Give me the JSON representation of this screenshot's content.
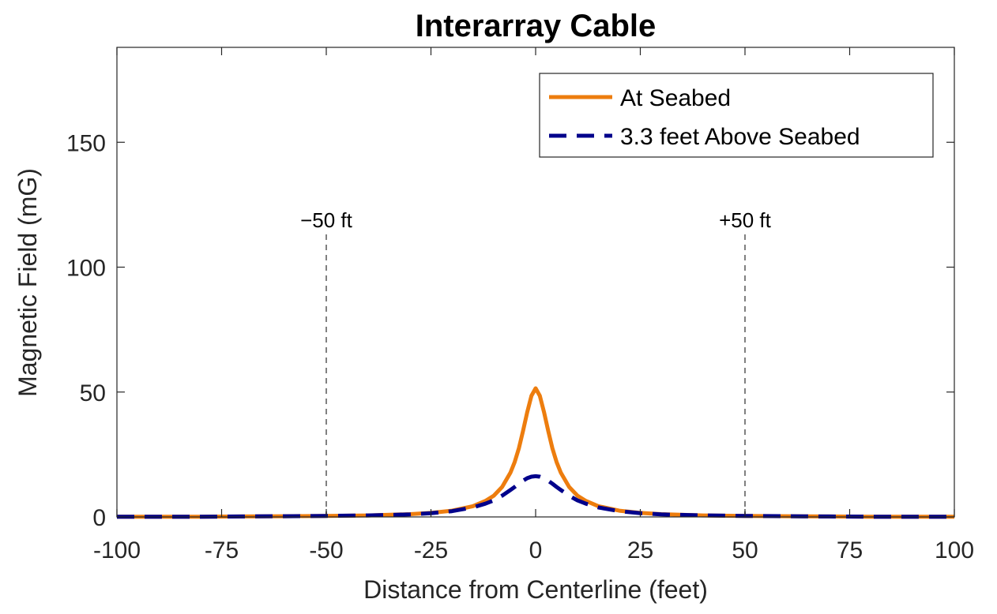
{
  "chart_data": {
    "type": "line",
    "title": "Interarray Cable",
    "xlabel": "Distance from Centerline (feet)",
    "ylabel": "Magnetic Field (mG)",
    "xlim": [
      -100,
      100
    ],
    "ylim": [
      0,
      188
    ],
    "xticks": [
      -100,
      -75,
      -50,
      -25,
      0,
      25,
      50,
      75,
      100
    ],
    "yticks": [
      0,
      50,
      100,
      150
    ],
    "grid": false,
    "legend_position": "top-right",
    "x": [
      -100,
      -90,
      -80,
      -70,
      -60,
      -50,
      -40,
      -30,
      -25,
      -20,
      -15,
      -12,
      -10,
      -8,
      -6,
      -5,
      -4,
      -3,
      -2,
      -1,
      0,
      1,
      2,
      3,
      4,
      5,
      6,
      8,
      10,
      12,
      15,
      20,
      25,
      30,
      40,
      50,
      60,
      70,
      80,
      90,
      100
    ],
    "series": [
      {
        "name": "At Seabed",
        "color": "#ED7D0E",
        "style": "solid",
        "values": [
          0.1,
          0.1,
          0.1,
          0.2,
          0.3,
          0.4,
          0.6,
          1.1,
          1.6,
          2.5,
          4.3,
          6.4,
          8.5,
          12.0,
          17.8,
          22.0,
          27.5,
          34.5,
          42.0,
          48.5,
          51.5,
          48.5,
          42.0,
          34.5,
          27.5,
          22.0,
          17.8,
          12.0,
          8.5,
          6.4,
          4.3,
          2.5,
          1.6,
          1.1,
          0.6,
          0.4,
          0.3,
          0.2,
          0.1,
          0.1,
          0.1
        ]
      },
      {
        "name": "3.3 feet Above Seabed",
        "color": "#00008B",
        "style": "dashed",
        "values": [
          0.1,
          0.1,
          0.1,
          0.2,
          0.3,
          0.4,
          0.6,
          1.0,
          1.5,
          2.3,
          3.8,
          5.3,
          6.6,
          8.5,
          10.8,
          12.0,
          13.3,
          14.5,
          15.5,
          16.1,
          16.3,
          16.1,
          15.5,
          14.5,
          13.3,
          12.0,
          10.8,
          8.5,
          6.6,
          5.3,
          3.8,
          2.3,
          1.5,
          1.0,
          0.6,
          0.4,
          0.3,
          0.2,
          0.1,
          0.1,
          0.1
        ]
      }
    ],
    "annotations": [
      {
        "x": -50,
        "label": "−50 ft"
      },
      {
        "x": 50,
        "label": "+50 ft"
      }
    ]
  }
}
